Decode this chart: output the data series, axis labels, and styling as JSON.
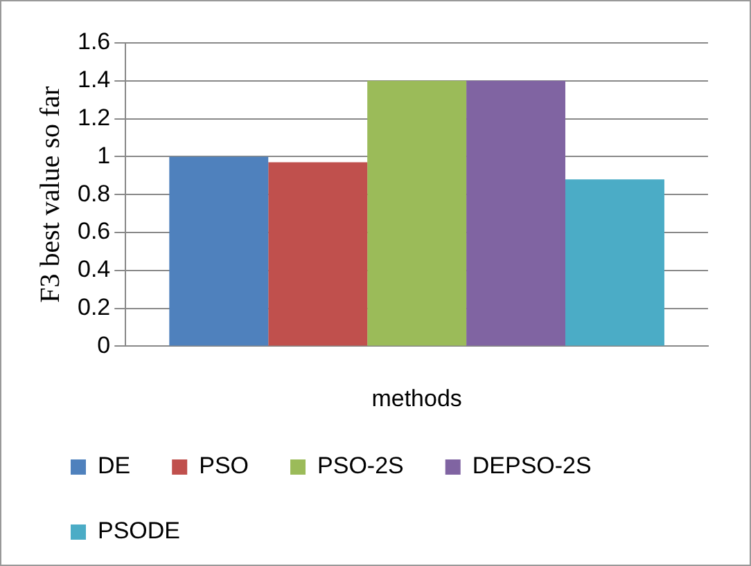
{
  "chart_data": {
    "type": "bar",
    "xlabel": "methods",
    "ylabel": "F3 best value so far",
    "categories": [
      null
    ],
    "series": [
      {
        "name": "DE",
        "color": "#4f81bd",
        "values": [
          1.0
        ]
      },
      {
        "name": "PSO",
        "color": "#c0504d",
        "values": [
          0.97
        ]
      },
      {
        "name": "PSO-2S",
        "color": "#9bbb59",
        "values": [
          1.4
        ]
      },
      {
        "name": "DEPSO-2S",
        "color": "#8064a2",
        "values": [
          1.4
        ]
      },
      {
        "name": "PSODE",
        "color": "#4bacc6",
        "values": [
          0.88
        ]
      }
    ],
    "ylim": [
      0,
      1.6
    ],
    "yticks": [
      0,
      0.2,
      0.4,
      0.6,
      0.8,
      1,
      1.2,
      1.4,
      1.6
    ],
    "grid": "y",
    "legend": "bottom"
  }
}
